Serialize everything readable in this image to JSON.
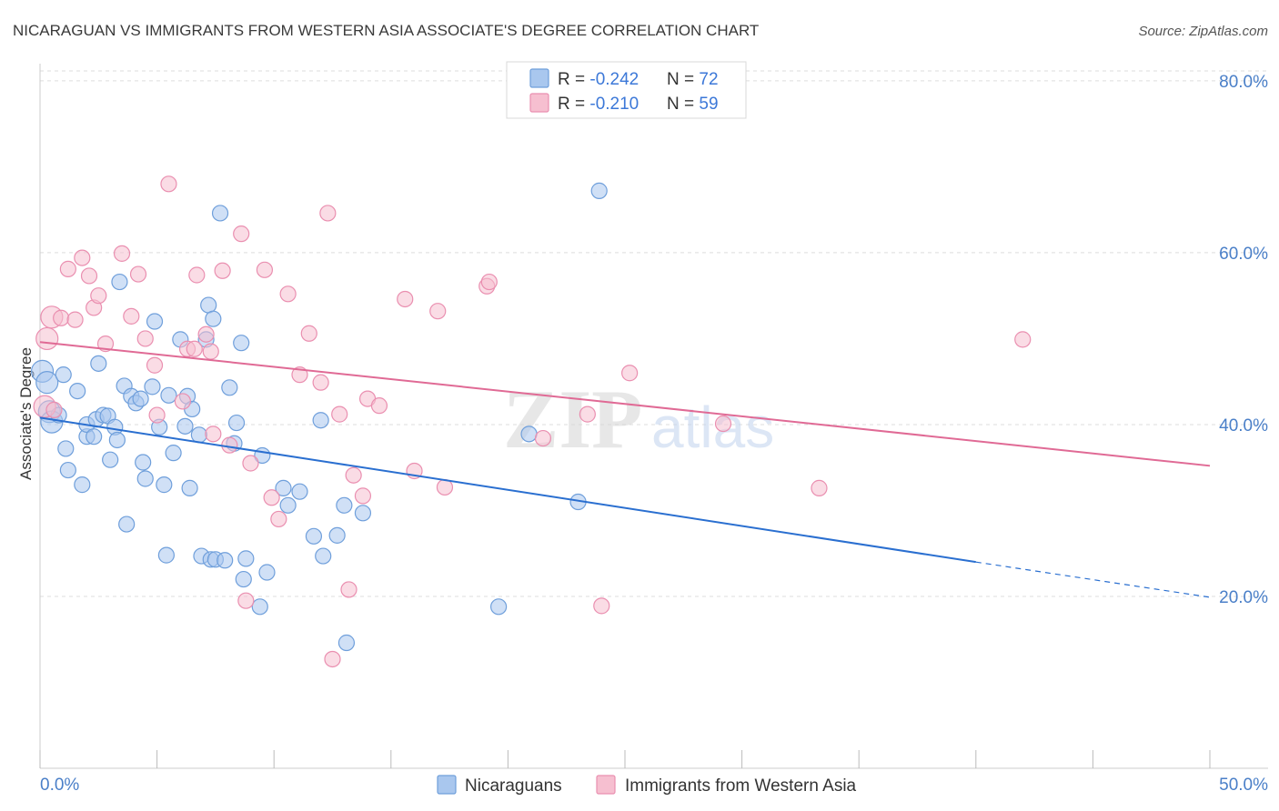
{
  "colors": {
    "series1_fill": "#a9c7ee",
    "series1_stroke": "#6f9fdb",
    "series1_line": "#2a6fd0",
    "series2_fill": "#f6bfd0",
    "series2_stroke": "#ea8fb0",
    "series2_line": "#e06a95",
    "grid": "#dddddd",
    "axis_tick_text": "#4a7fc8"
  },
  "chart_data": {
    "type": "scatter",
    "title": "NICARAGUAN VS IMMIGRANTS FROM WESTERN ASIA ASSOCIATE'S DEGREE CORRELATION CHART",
    "source": "Source: ZipAtlas.com",
    "watermark_zip": "ZIP",
    "watermark_atlas": "atlas",
    "ylabel": "Associate's Degree",
    "xlim": [
      0,
      50
    ],
    "ylim": [
      0,
      82
    ],
    "y_ticks": [
      {
        "value": 20,
        "label": "20.0%"
      },
      {
        "value": 40,
        "label": "40.0%"
      },
      {
        "value": 60,
        "label": "60.0%"
      },
      {
        "value": 80,
        "label": "80.0%"
      }
    ],
    "x_tick_marks": [
      0,
      5,
      10,
      15,
      20,
      25,
      30,
      35,
      40,
      45,
      50
    ],
    "x_label_left": "0.0%",
    "x_label_right": "50.0%",
    "legend": {
      "rows": [
        {
          "r_label": "R = ",
          "r_value": "-0.242",
          "n_label": "N = ",
          "n_value": "72"
        },
        {
          "r_label": "R = ",
          "r_value": "-0.210",
          "n_label": "N = ",
          "n_value": "59"
        }
      ]
    },
    "series": [
      {
        "name": "Nicaraguans",
        "trend": {
          "x0": 0,
          "y0": 40.8,
          "x1": 40,
          "y1": 24.0,
          "dash_x1": 50,
          "dash_y1": 19.9
        },
        "points": [
          [
            0.1,
            46.2
          ],
          [
            0.3,
            44.9
          ],
          [
            0.4,
            41.5
          ],
          [
            0.5,
            40.3
          ],
          [
            0.8,
            41.1
          ],
          [
            1.0,
            45.8
          ],
          [
            1.1,
            37.2
          ],
          [
            1.2,
            34.7
          ],
          [
            1.6,
            43.9
          ],
          [
            1.8,
            33.0
          ],
          [
            2.0,
            38.6
          ],
          [
            2.0,
            40.0
          ],
          [
            2.3,
            38.6
          ],
          [
            2.4,
            40.6
          ],
          [
            2.5,
            47.1
          ],
          [
            2.7,
            41.1
          ],
          [
            2.9,
            41.0
          ],
          [
            3.0,
            35.9
          ],
          [
            3.2,
            39.7
          ],
          [
            3.3,
            38.2
          ],
          [
            3.4,
            56.6
          ],
          [
            3.6,
            44.5
          ],
          [
            3.7,
            28.4
          ],
          [
            3.9,
            43.3
          ],
          [
            4.1,
            42.5
          ],
          [
            4.3,
            43.0
          ],
          [
            4.4,
            35.6
          ],
          [
            4.5,
            33.7
          ],
          [
            4.8,
            44.4
          ],
          [
            4.9,
            52.0
          ],
          [
            5.1,
            39.7
          ],
          [
            5.3,
            33.0
          ],
          [
            5.4,
            24.8
          ],
          [
            5.5,
            43.4
          ],
          [
            5.7,
            36.7
          ],
          [
            6.0,
            49.9
          ],
          [
            6.2,
            39.8
          ],
          [
            6.3,
            43.3
          ],
          [
            6.4,
            32.6
          ],
          [
            6.5,
            41.8
          ],
          [
            6.8,
            38.8
          ],
          [
            6.9,
            24.7
          ],
          [
            7.1,
            49.9
          ],
          [
            7.2,
            53.9
          ],
          [
            7.3,
            24.3
          ],
          [
            7.4,
            52.3
          ],
          [
            7.5,
            24.3
          ],
          [
            7.7,
            64.6
          ],
          [
            7.9,
            24.2
          ],
          [
            8.1,
            44.3
          ],
          [
            8.3,
            37.8
          ],
          [
            8.4,
            40.2
          ],
          [
            8.6,
            49.5
          ],
          [
            8.7,
            22.0
          ],
          [
            8.8,
            24.4
          ],
          [
            9.4,
            18.8
          ],
          [
            9.5,
            36.4
          ],
          [
            9.7,
            22.8
          ],
          [
            10.4,
            32.6
          ],
          [
            10.6,
            30.6
          ],
          [
            11.1,
            32.2
          ],
          [
            11.7,
            27.0
          ],
          [
            12.0,
            40.5
          ],
          [
            12.1,
            24.7
          ],
          [
            12.7,
            27.1
          ],
          [
            13.0,
            30.6
          ],
          [
            13.1,
            14.6
          ],
          [
            13.8,
            29.7
          ],
          [
            19.6,
            18.8
          ],
          [
            20.9,
            38.9
          ],
          [
            23.0,
            31.0
          ],
          [
            23.9,
            67.2
          ]
        ]
      },
      {
        "name": "Immigrants from Western Asia",
        "trend": {
          "x0": 0,
          "y0": 49.6,
          "x1": 50,
          "y1": 35.2
        },
        "points": [
          [
            0.2,
            42.1
          ],
          [
            0.3,
            50.0
          ],
          [
            0.5,
            52.5
          ],
          [
            0.6,
            41.7
          ],
          [
            0.9,
            52.4
          ],
          [
            1.2,
            58.1
          ],
          [
            1.5,
            52.2
          ],
          [
            1.8,
            59.4
          ],
          [
            2.1,
            57.3
          ],
          [
            2.3,
            53.6
          ],
          [
            2.5,
            55.0
          ],
          [
            2.8,
            49.4
          ],
          [
            3.5,
            59.9
          ],
          [
            3.9,
            52.6
          ],
          [
            4.2,
            57.5
          ],
          [
            4.5,
            50.0
          ],
          [
            4.9,
            46.9
          ],
          [
            5.0,
            41.1
          ],
          [
            5.5,
            68.0
          ],
          [
            6.1,
            42.7
          ],
          [
            6.3,
            48.8
          ],
          [
            6.6,
            48.8
          ],
          [
            6.7,
            57.4
          ],
          [
            7.1,
            50.5
          ],
          [
            7.3,
            48.5
          ],
          [
            7.4,
            38.9
          ],
          [
            7.8,
            57.9
          ],
          [
            8.1,
            37.6
          ],
          [
            8.6,
            62.2
          ],
          [
            8.8,
            19.5
          ],
          [
            9.0,
            35.5
          ],
          [
            9.6,
            58.0
          ],
          [
            9.9,
            31.5
          ],
          [
            10.2,
            29.0
          ],
          [
            10.6,
            55.2
          ],
          [
            11.1,
            45.8
          ],
          [
            11.5,
            50.6
          ],
          [
            12.0,
            44.9
          ],
          [
            12.3,
            64.6
          ],
          [
            12.5,
            12.7
          ],
          [
            12.8,
            41.2
          ],
          [
            13.2,
            20.8
          ],
          [
            13.4,
            34.1
          ],
          [
            13.8,
            31.7
          ],
          [
            14.0,
            43.0
          ],
          [
            14.5,
            42.2
          ],
          [
            15.6,
            54.6
          ],
          [
            16.0,
            34.6
          ],
          [
            17.0,
            53.2
          ],
          [
            17.3,
            32.7
          ],
          [
            19.1,
            56.1
          ],
          [
            19.2,
            56.6
          ],
          [
            21.5,
            38.4
          ],
          [
            23.4,
            41.2
          ],
          [
            24.0,
            18.9
          ],
          [
            25.2,
            46.0
          ],
          [
            29.2,
            40.1
          ],
          [
            33.3,
            32.6
          ],
          [
            42.0,
            49.9
          ]
        ]
      }
    ]
  }
}
